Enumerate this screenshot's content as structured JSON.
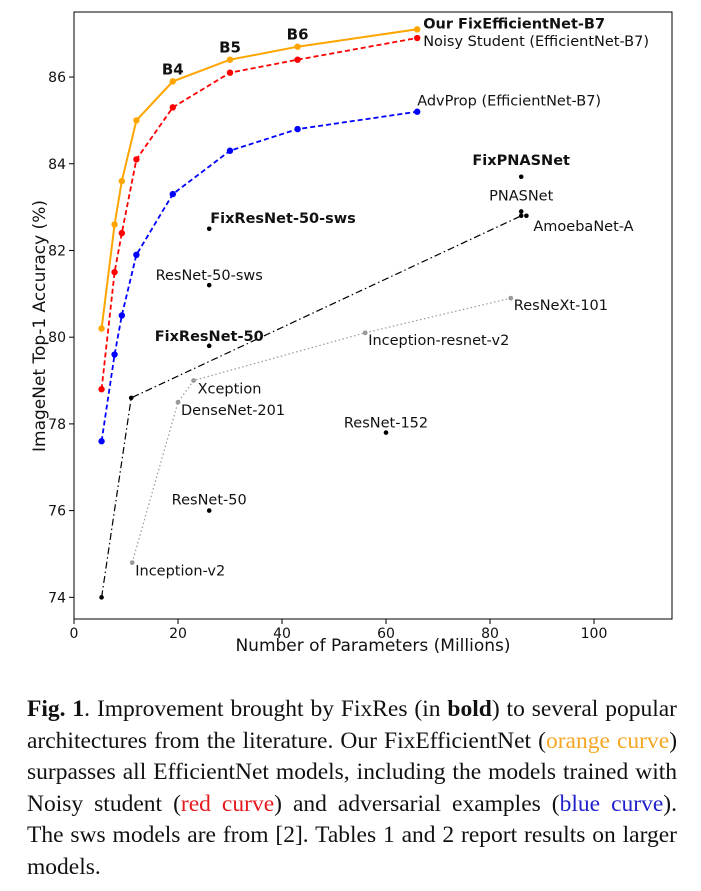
{
  "chart_data": {
    "type": "scatter",
    "xlabel": "Number of Parameters (Millions)",
    "ylabel": "ImageNet Top-1 Accuracy (%)",
    "xlim": [
      0,
      115
    ],
    "ylim": [
      73.5,
      87.5
    ],
    "xticks": [
      0,
      20,
      40,
      60,
      80,
      100
    ],
    "yticks": [
      74,
      76,
      78,
      80,
      82,
      84,
      86
    ],
    "grid": false,
    "series": [
      {
        "name": "Our FixEfficientNet-B7",
        "color": "#ffa500",
        "style": "solid",
        "x": [
          5.3,
          7.8,
          9.2,
          12,
          19,
          30,
          43,
          66
        ],
        "y": [
          80.2,
          82.6,
          83.6,
          85.0,
          85.9,
          86.4,
          86.7,
          87.1
        ],
        "point_labels": [
          "",
          "",
          "",
          "",
          "B4",
          "B5",
          "B6",
          ""
        ]
      },
      {
        "name": "Noisy Student (EfficientNet-B7)",
        "color": "#ff0000",
        "style": "dashed",
        "x": [
          5.3,
          7.8,
          9.2,
          12,
          19,
          30,
          43,
          66
        ],
        "y": [
          78.8,
          81.5,
          82.4,
          84.1,
          85.3,
          86.1,
          86.4,
          86.9
        ]
      },
      {
        "name": "AdvProp (EfficientNet-B7)",
        "color": "#0000ff",
        "style": "dashed",
        "x": [
          5.3,
          7.8,
          9.2,
          12,
          19,
          30,
          43,
          66
        ],
        "y": [
          77.6,
          79.6,
          80.5,
          81.9,
          83.3,
          84.3,
          84.8,
          85.2
        ]
      },
      {
        "name": "black",
        "color": "#000000",
        "style": "dashdot",
        "x": [
          5.3,
          11,
          86
        ],
        "y": [
          74.0,
          78.6,
          82.8
        ]
      },
      {
        "name": "gray",
        "color": "#999999",
        "style": "dotted",
        "x": [
          11.2,
          20,
          23,
          56,
          84
        ],
        "y": [
          74.8,
          78.5,
          79.0,
          80.1,
          80.9
        ]
      }
    ],
    "points": [
      {
        "label": "FixPNASNet",
        "x": 86,
        "y": 83.7,
        "bold": true,
        "color": "#000000"
      },
      {
        "label": "PNASNet",
        "x": 86,
        "y": 82.9,
        "bold": false,
        "color": "#000000"
      },
      {
        "label": "AmoebaNet-A",
        "x": 87,
        "y": 82.8,
        "bold": false,
        "color": "#000000"
      },
      {
        "label": "FixResNet-50-sws",
        "x": 26,
        "y": 82.5,
        "bold": true,
        "color": "#000000"
      },
      {
        "label": "ResNet-50-sws",
        "x": 26,
        "y": 81.2,
        "bold": false,
        "color": "#000000"
      },
      {
        "label": "ResNeXt-101",
        "x": 84,
        "y": 80.9,
        "bold": false,
        "color": "#999999"
      },
      {
        "label": "Inception-resnet-v2",
        "x": 56,
        "y": 80.1,
        "bold": false,
        "color": "#999999"
      },
      {
        "label": "FixResNet-50",
        "x": 26,
        "y": 79.8,
        "bold": true,
        "color": "#000000"
      },
      {
        "label": "Xception",
        "x": 23,
        "y": 79.0,
        "bold": false,
        "color": "#999999"
      },
      {
        "label": "DenseNet-201",
        "x": 20,
        "y": 78.5,
        "bold": false,
        "color": "#999999"
      },
      {
        "label": "ResNet-152",
        "x": 60,
        "y": 77.8,
        "bold": false,
        "color": "#000000"
      },
      {
        "label": "ResNet-50",
        "x": 26,
        "y": 76.0,
        "bold": false,
        "color": "#000000"
      },
      {
        "label": "Inception-v2",
        "x": 11.2,
        "y": 74.8,
        "bold": false,
        "color": "#999999"
      }
    ]
  },
  "caption": {
    "fig_label": "Fig. 1",
    "part1": ". Improvement brought by FixRes (in ",
    "bold_word": "bold",
    "part2": ") to several popular architectures from the literature. Our FixEfficientNet (",
    "orange_text": "orange curve",
    "part3": ") surpasses all EfficientNet models, including the models trained with Noisy student (",
    "red_text": "red curve",
    "part4": ") and adversarial examples (",
    "blue_text": "blue curve",
    "part5": "). The sws models are from [2]. Tables 1 and 2 report results on larger models."
  }
}
